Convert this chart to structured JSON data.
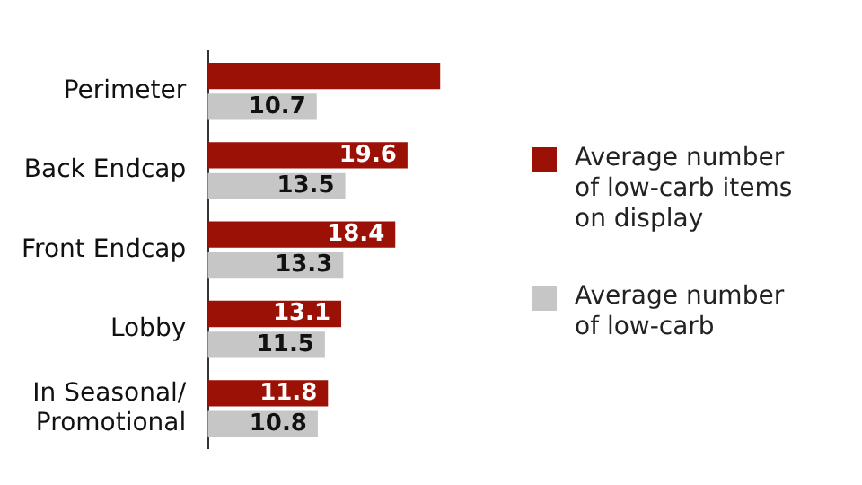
{
  "chart_data": {
    "type": "bar",
    "orientation": "horizontal",
    "categories": [
      "Perimeter",
      "Back Endcap",
      "Front Endcap",
      "Lobby",
      "In Seasonal/ Promotional"
    ],
    "series": [
      {
        "name": "Average number of low-carb items on display",
        "color": "#9b1106",
        "values": [
          22.8,
          19.6,
          18.4,
          13.1,
          11.8
        ],
        "value_labels": [
          null,
          "19.6",
          "18.4",
          "13.1",
          "11.8"
        ]
      },
      {
        "name": "Average number of low-carb",
        "color": "#c6c6c6",
        "values": [
          10.7,
          13.5,
          13.3,
          11.5,
          10.8
        ],
        "value_labels": [
          "10.7",
          "13.5",
          "13.3",
          "11.5",
          "10.8"
        ]
      }
    ],
    "legend": "right"
  }
}
